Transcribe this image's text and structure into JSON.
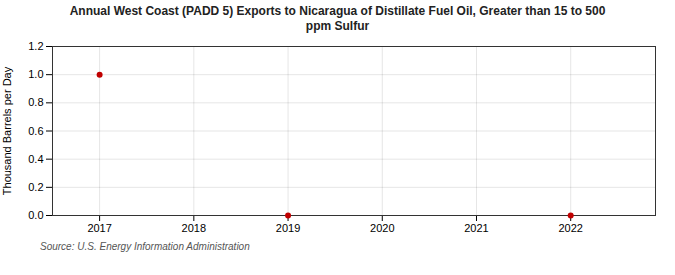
{
  "chart_data": {
    "type": "scatter",
    "title": "Annual West Coast (PADD 5) Exports to Nicaragua of Distillate Fuel Oil, Greater than 15 to 500\nppm Sulfur",
    "ylabel": "Thousand Barrels per Day",
    "source": "Source: U.S. Energy Information Administration",
    "x": [
      2017,
      2019,
      2022
    ],
    "values": [
      1.0,
      0.0,
      0.0
    ],
    "color": "#c00000",
    "xlim": [
      2016.5,
      2022.9
    ],
    "xticks": [
      2017,
      2018,
      2019,
      2020,
      2021,
      2022
    ],
    "ylim": [
      0.0,
      1.2
    ],
    "yticks": [
      {
        "value": 0,
        "label": "0.0"
      },
      0.2,
      0.4,
      0.6,
      0.8,
      {
        "value": 1,
        "label": "1.0"
      },
      1.2
    ],
    "grid": true
  }
}
